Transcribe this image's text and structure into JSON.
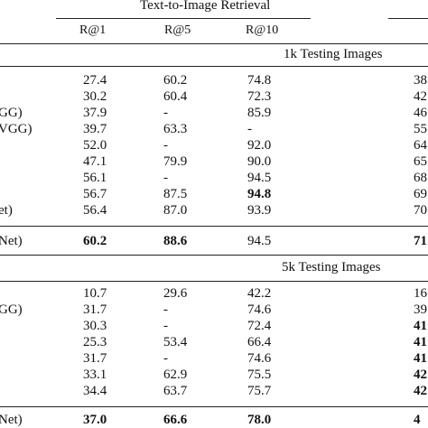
{
  "table": {
    "group_header_t2i": "Text-to-Image Retrieval",
    "col_headers": [
      "R@1",
      "R@5",
      "R@10"
    ],
    "section1": {
      "title": "1k Testing Images",
      "rows": [
        {
          "label": "",
          "v1": "27.4",
          "v2": "60.2",
          "v3": "74.8",
          "v4": "38"
        },
        {
          "label": "",
          "v1": "30.2",
          "v2": "60.4",
          "v3": "72.3",
          "v4": "42"
        },
        {
          "label": "GG)",
          "v1": "37.9",
          "v2": "-",
          "v3": "85.9",
          "v4": "46"
        },
        {
          "label": "VGG)",
          "v1": "39.7",
          "v2": "63.3",
          "v3": "-",
          "v4": "55"
        },
        {
          "label": "",
          "v1": "52.0",
          "v2": "-",
          "v3": "92.0",
          "v4": "64"
        },
        {
          "label": "",
          "v1": "47.1",
          "v2": "79.9",
          "v3": "90.0",
          "v4": "65"
        },
        {
          "label": "",
          "v1": "56.1",
          "v2": "-",
          "v3": "94.5",
          "v4": "68"
        },
        {
          "label": "",
          "v1": "56.7",
          "v2": "87.5",
          "v3": "94.8",
          "v4": "69"
        },
        {
          "label": "et)",
          "v1": "56.4",
          "v2": "87.0",
          "v3": "93.9",
          "v4": "70"
        }
      ],
      "ours": {
        "label": "Net)",
        "v1": "60.2",
        "v2": "88.6",
        "v3": "94.5",
        "v4": "71"
      }
    },
    "section2": {
      "title": "5k Testing Images",
      "rows": [
        {
          "label": "",
          "v1": "10.7",
          "v2": "29.6",
          "v3": "42.2",
          "v4": "16"
        },
        {
          "label": "GG)",
          "v1": "31.7",
          "v2": "-",
          "v3": "74.6",
          "v4": "39"
        },
        {
          "label": "",
          "v1": "30.3",
          "v2": "-",
          "v3": "72.4",
          "v4": "41"
        },
        {
          "label": "",
          "v1": "25.3",
          "v2": "53.4",
          "v3": "66.4",
          "v4": "41"
        },
        {
          "label": "",
          "v1": "31.7",
          "v2": "-",
          "v3": "74.6",
          "v4": "41"
        },
        {
          "label": "",
          "v1": "33.1",
          "v2": "62.9",
          "v3": "75.5",
          "v4": "42"
        },
        {
          "label": "",
          "v1": "34.4",
          "v2": "63.7",
          "v3": "75.7",
          "v4": "42"
        }
      ],
      "ours": {
        "label": "Net)",
        "v1": "37.0",
        "v2": "66.6",
        "v3": "78.0",
        "v4": "4"
      }
    }
  }
}
